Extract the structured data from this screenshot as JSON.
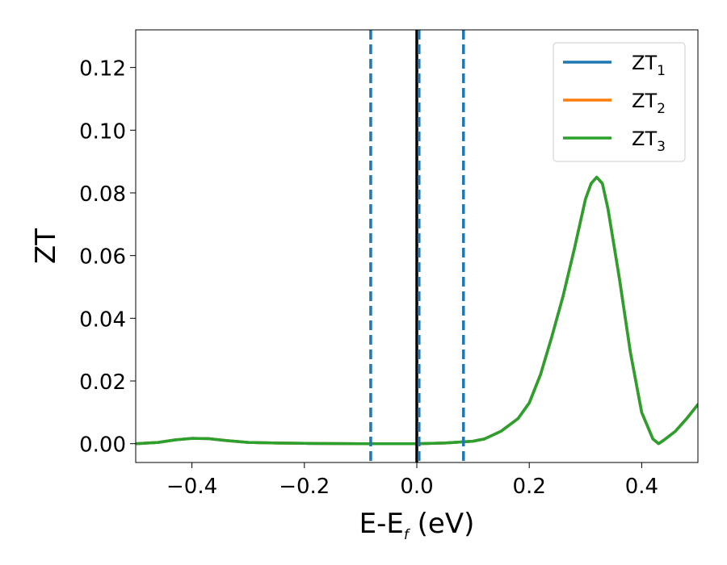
{
  "chart_data": {
    "type": "line",
    "title": "",
    "xlabel": {
      "main": "E-E",
      "sub": "f",
      "suffix": " (eV)"
    },
    "ylabel": "ZT",
    "xlim": [
      -0.5,
      0.5
    ],
    "ylim": [
      -0.006,
      0.132
    ],
    "x_ticks": [
      {
        "value": -0.4,
        "label": "−0.4"
      },
      {
        "value": -0.2,
        "label": "−0.2"
      },
      {
        "value": 0.0,
        "label": "0.0"
      },
      {
        "value": 0.2,
        "label": "0.2"
      },
      {
        "value": 0.4,
        "label": "0.4"
      }
    ],
    "y_ticks": [
      {
        "value": 0.0,
        "label": "0.00"
      },
      {
        "value": 0.02,
        "label": "0.02"
      },
      {
        "value": 0.04,
        "label": "0.04"
      },
      {
        "value": 0.06,
        "label": "0.06"
      },
      {
        "value": 0.08,
        "label": "0.08"
      },
      {
        "value": 0.1,
        "label": "0.10"
      },
      {
        "value": 0.12,
        "label": "0.12"
      }
    ],
    "grid": false,
    "legend_position": "top-right",
    "x": [
      -0.5,
      -0.46,
      -0.43,
      -0.4,
      -0.37,
      -0.34,
      -0.3,
      -0.25,
      -0.2,
      -0.1,
      0.0,
      0.05,
      0.1,
      0.12,
      0.15,
      0.18,
      0.2,
      0.22,
      0.24,
      0.26,
      0.28,
      0.3,
      0.31,
      0.32,
      0.33,
      0.34,
      0.36,
      0.38,
      0.4,
      0.42,
      0.43,
      0.44,
      0.46,
      0.48,
      0.5
    ],
    "series": [
      {
        "name": "ZT",
        "sub": "1",
        "color": "#1f77b4",
        "values": [
          0.0,
          0.0004,
          0.0012,
          0.0017,
          0.0016,
          0.001,
          0.0004,
          0.0002,
          0.0001,
          0.0,
          0.0,
          0.0002,
          0.0008,
          0.0015,
          0.004,
          0.008,
          0.013,
          0.022,
          0.034,
          0.047,
          0.062,
          0.078,
          0.083,
          0.085,
          0.083,
          0.075,
          0.053,
          0.029,
          0.01,
          0.0015,
          0.0,
          0.0012,
          0.004,
          0.008,
          0.0125
        ]
      },
      {
        "name": "ZT",
        "sub": "2",
        "color": "#ff7f0e",
        "values": [
          0.0,
          0.0004,
          0.0012,
          0.0017,
          0.0016,
          0.001,
          0.0004,
          0.0002,
          0.0001,
          0.0,
          0.0,
          0.0002,
          0.0008,
          0.0015,
          0.004,
          0.008,
          0.013,
          0.022,
          0.034,
          0.047,
          0.062,
          0.078,
          0.083,
          0.085,
          0.083,
          0.075,
          0.053,
          0.029,
          0.01,
          0.0015,
          0.0,
          0.0012,
          0.004,
          0.008,
          0.0125
        ]
      },
      {
        "name": "ZT",
        "sub": "3",
        "color": "#2ca02c",
        "values": [
          0.0,
          0.0004,
          0.0012,
          0.0017,
          0.0016,
          0.001,
          0.0004,
          0.0002,
          0.0001,
          0.0,
          0.0,
          0.0002,
          0.0008,
          0.0015,
          0.004,
          0.008,
          0.013,
          0.022,
          0.034,
          0.047,
          0.062,
          0.078,
          0.083,
          0.085,
          0.083,
          0.075,
          0.053,
          0.029,
          0.01,
          0.0015,
          0.0,
          0.0012,
          0.004,
          0.008,
          0.0125
        ]
      }
    ],
    "vlines": [
      {
        "x": -0.082,
        "style": "dashed",
        "color": "#1f77b4"
      },
      {
        "x": 0.0,
        "style": "solid",
        "color": "#000000"
      },
      {
        "x": 0.004,
        "style": "dashed",
        "color": "#1f77b4"
      },
      {
        "x": 0.083,
        "style": "dashed",
        "color": "#1f77b4"
      }
    ]
  }
}
